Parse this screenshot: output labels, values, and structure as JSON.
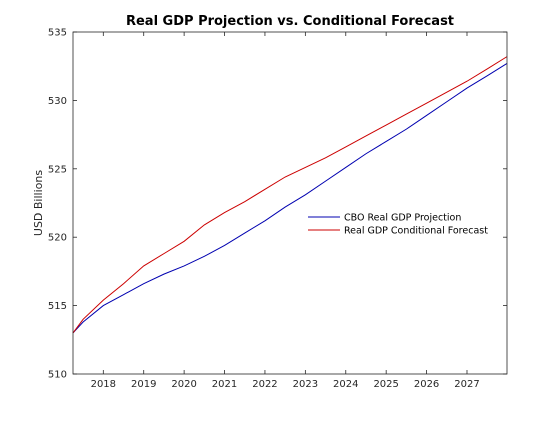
{
  "chart_data": {
    "type": "line",
    "title": "Real GDP Projection vs. Conditional Forecast",
    "xlabel": "",
    "ylabel": "USD Billions",
    "xlim": [
      2017.25,
      2027.99
    ],
    "ylim": [
      510,
      535
    ],
    "x_ticks": [
      2018,
      2019,
      2020,
      2021,
      2022,
      2023,
      2024,
      2025,
      2026,
      2027
    ],
    "x_tick_labels": [
      "2018",
      "2019",
      "2020",
      "2021",
      "2022",
      "2023",
      "2024",
      "2025",
      "2026",
      "2027"
    ],
    "y_ticks": [
      510,
      515,
      520,
      525,
      530,
      535
    ],
    "y_tick_labels": [
      "510",
      "515",
      "520",
      "525",
      "530",
      "535"
    ],
    "grid": false,
    "legend_position": "center-right",
    "x": [
      2017.25,
      2017.5,
      2018.0,
      2018.5,
      2019.0,
      2019.5,
      2020.0,
      2020.5,
      2021.0,
      2021.5,
      2022.0,
      2022.5,
      2023.0,
      2023.5,
      2024.0,
      2024.5,
      2025.0,
      2025.5,
      2026.0,
      2026.5,
      2027.0,
      2027.5,
      2027.99
    ],
    "series": [
      {
        "name": "CBO Real GDP Projection",
        "color": "#0000b0",
        "values": [
          513.0,
          513.8,
          515.0,
          515.8,
          516.6,
          517.3,
          517.9,
          518.6,
          519.4,
          520.3,
          521.2,
          522.2,
          523.1,
          524.1,
          525.1,
          526.1,
          527.0,
          527.9,
          528.9,
          529.9,
          530.9,
          531.8,
          532.7
        ]
      },
      {
        "name": "Real GDP Conditional Forecast",
        "color": "#cc0000",
        "values": [
          513.0,
          514.0,
          515.4,
          516.6,
          517.9,
          518.8,
          519.7,
          520.9,
          521.8,
          522.6,
          523.5,
          524.4,
          525.1,
          525.8,
          526.6,
          527.4,
          528.2,
          529.0,
          529.8,
          530.6,
          531.4,
          532.3,
          533.2
        ]
      }
    ]
  }
}
